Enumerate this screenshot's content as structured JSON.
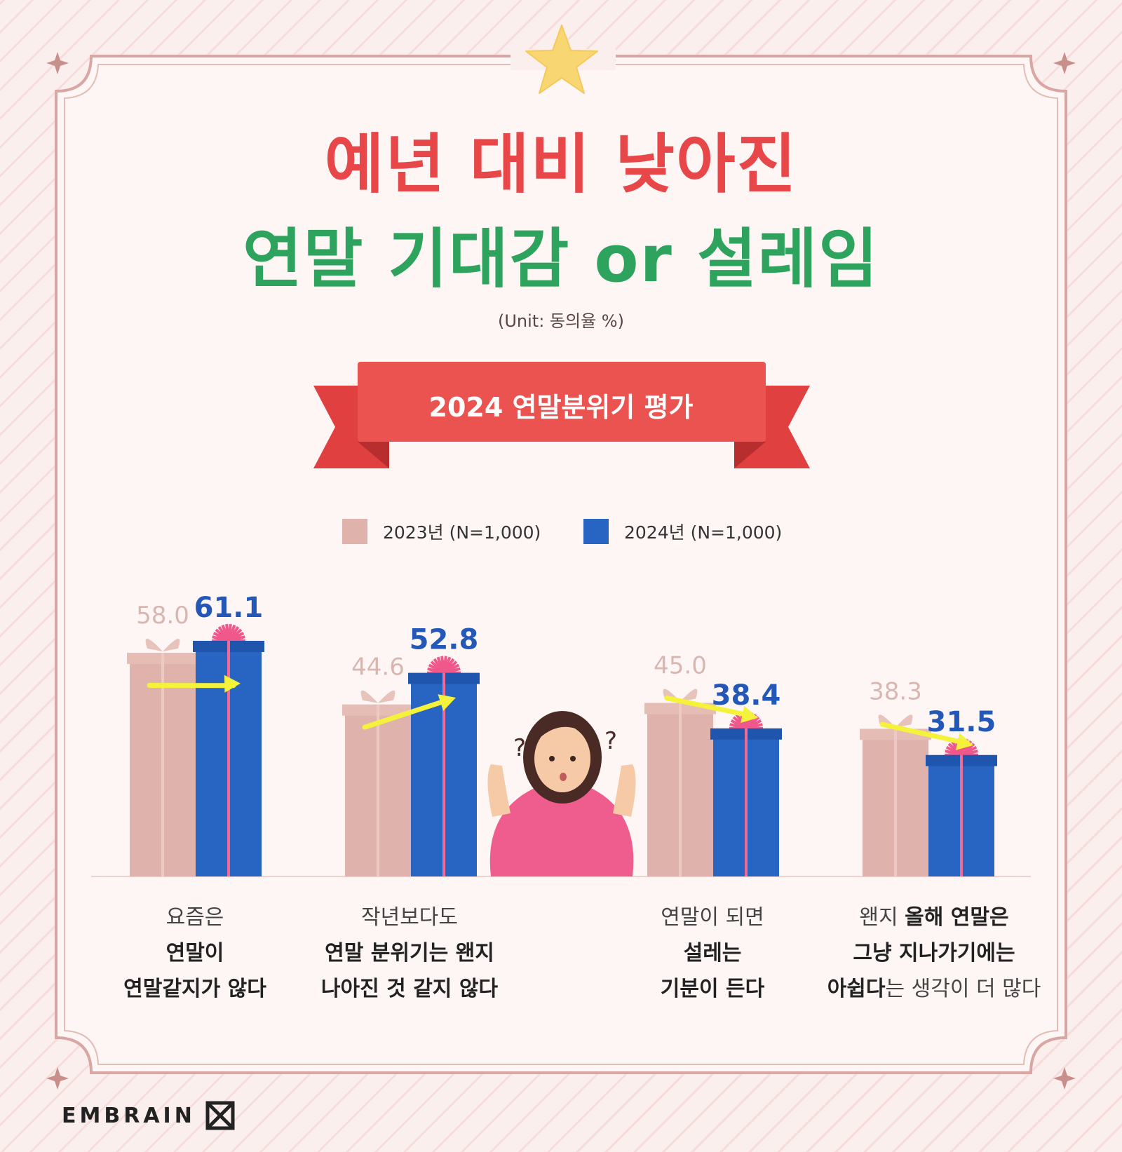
{
  "title": {
    "line1": "예년 대비 낮아진",
    "line2": "연말 기대감 or 설레임"
  },
  "unit_note": "(Unit: 동의율 %)",
  "ribbon_title": "2024 연말분위기 평가",
  "colors": {
    "series_2023": "#dfb3ab",
    "series_2024": "#2864c2",
    "title_red": "#e8474a",
    "title_green": "#2ea35e",
    "ribbon_red": "#e9514f",
    "arrow_yellow": "#f4f23a"
  },
  "chart_data": {
    "type": "bar",
    "title": "2024 연말분위기 평가",
    "unit": "(Unit: 동의율 %)",
    "series": [
      {
        "name": "2023년 (N=1,000)",
        "values": [
          58.0,
          44.6,
          45.0,
          38.3
        ]
      },
      {
        "name": "2024년 (N=1,000)",
        "values": [
          61.1,
          52.8,
          38.4,
          31.5
        ]
      }
    ],
    "value_labels": {
      "s2023": [
        "58.0",
        "44.6",
        "45.0",
        "38.3"
      ],
      "s2024": [
        "61.1",
        "52.8",
        "38.4",
        "31.5"
      ]
    },
    "categories": [
      "요즘은 연말이 연말같지가 않다",
      "작년보다도 연말 분위기는 왠지 나아진 것 같지 않다",
      "연말이 되면 설레는 기분이 든다",
      "왠지 올해 연말은 그냥 지나가기에는 아쉽다는 생각이 더 많다"
    ],
    "category_lines": [
      [
        [
          {
            "t": "요즘은",
            "b": false
          }
        ],
        [
          {
            "t": "연말이",
            "b": true
          }
        ],
        [
          {
            "t": "연말같지가 않다",
            "b": true
          }
        ]
      ],
      [
        [
          {
            "t": "작년보다도",
            "b": false
          }
        ],
        [
          {
            "t": "연말 분위기는 왠지",
            "b": true
          }
        ],
        [
          {
            "t": "나아진 것 같지 않다",
            "b": true
          }
        ]
      ],
      [
        [
          {
            "t": "연말이 되면",
            "b": false
          }
        ],
        [
          {
            "t": "설레는",
            "b": true
          }
        ],
        [
          {
            "t": "기분이 든다",
            "b": true
          }
        ]
      ],
      [
        [
          {
            "t": "왠지 ",
            "b": false
          },
          {
            "t": "올해 연말은",
            "b": true
          }
        ],
        [
          {
            "t": "그냥 지나가기에는",
            "b": true
          }
        ],
        [
          {
            "t": "아쉽다",
            "b": true
          },
          {
            "t": "는 생각이 더 많다",
            "b": false
          }
        ]
      ]
    ],
    "legend_position": "top-center",
    "ylim": [
      0,
      100
    ],
    "grid": false
  },
  "logo_text": "EMBRAIN"
}
